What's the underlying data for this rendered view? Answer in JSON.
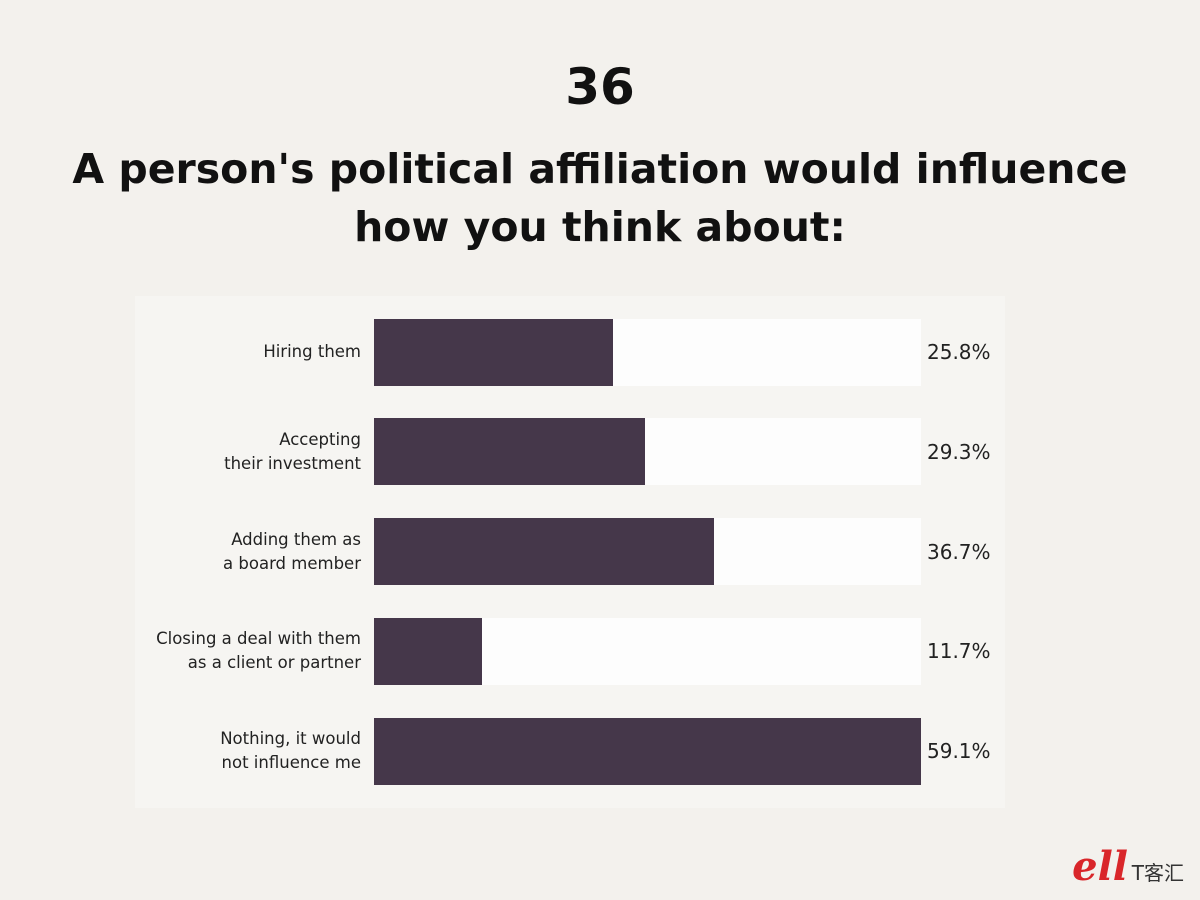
{
  "chart_data": {
    "type": "bar",
    "orientation": "horizontal",
    "chart_number": "36",
    "title": "A person's political affiliation would influence how you think about:",
    "categories": [
      "Hiring them",
      "Accepting\ntheir investment",
      "Adding them as\na board member",
      "Closing a deal with them\nas a client or partner",
      "Nothing, it would\nnot influence me"
    ],
    "values": [
      25.8,
      29.3,
      36.7,
      11.7,
      59.1
    ],
    "value_labels": [
      "25.8%",
      "29.3%",
      "36.7%",
      "11.7%",
      "59.1%"
    ],
    "xlim": [
      0,
      59.1
    ],
    "color": "#45374a",
    "track_color": "#fdfdfd",
    "watermark": "T客汇"
  }
}
